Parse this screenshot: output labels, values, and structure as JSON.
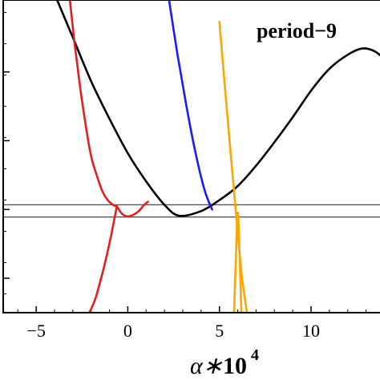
{
  "chart_data": {
    "type": "line",
    "title": "",
    "annotation": "period−9",
    "xlabel": {
      "base": "α∗",
      "exp_base": "10",
      "exp": "4"
    },
    "ylabel": "",
    "xlim": [
      -6.8,
      14.2
    ],
    "ylim": [
      0,
      1
    ],
    "xticks": [
      -5,
      0,
      5,
      10
    ],
    "xtick_labels": [
      "−5",
      "0",
      "5",
      "10"
    ],
    "yticks_minor": [
      0.06,
      0.16,
      0.26,
      0.36,
      0.46,
      0.56,
      0.66,
      0.76,
      0.86,
      0.96
    ],
    "yticks_major": [
      0.11,
      0.33,
      0.55,
      0.77
    ],
    "grid": false,
    "hlines": [
      {
        "name": "upper",
        "y": 0.345,
        "color": "#555555"
      },
      {
        "name": "lower",
        "y": 0.306,
        "color": "#555555"
      }
    ],
    "series": [
      {
        "color": "#000000",
        "x": [
          -4.0,
          -3.0,
          -2.0,
          -1.0,
          0.0,
          1.0,
          2.0,
          2.8,
          4.0,
          5.0,
          6.0,
          7.0,
          8.0,
          9.0,
          10.0,
          11.0,
          12.0,
          12.8,
          13.5,
          14.2
        ],
        "y": [
          1.02,
          0.88,
          0.74,
          0.62,
          0.51,
          0.42,
          0.345,
          0.31,
          0.325,
          0.36,
          0.405,
          0.47,
          0.545,
          0.625,
          0.71,
          0.78,
          0.825,
          0.845,
          0.835,
          0.8
        ]
      },
      {
        "color": "#e02020",
        "x": [
          -3.2,
          -2.9,
          -2.6,
          -2.3,
          -2.0,
          -1.7,
          -1.4,
          -1.1,
          -0.8,
          -0.6
        ],
        "y": [
          1.02,
          0.86,
          0.72,
          0.6,
          0.5,
          0.44,
          0.39,
          0.36,
          0.345,
          0.34
        ]
      },
      {
        "color": "#e02020",
        "x": [
          -0.6,
          -0.3,
          0.0,
          0.3,
          0.6,
          0.9,
          1.1
        ],
        "y": [
          0.34,
          0.315,
          0.308,
          0.313,
          0.325,
          0.345,
          0.355
        ]
      },
      {
        "color": "#e02020",
        "x": [
          -0.6,
          -0.9,
          -1.2,
          -1.5,
          -1.8,
          -2.1
        ],
        "y": [
          0.34,
          0.25,
          0.17,
          0.1,
          0.04,
          0.0
        ]
      },
      {
        "color": "#1a1aff",
        "x": [
          2.2,
          2.7,
          3.2,
          3.7,
          4.2,
          4.6
        ],
        "y": [
          1.02,
          0.83,
          0.66,
          0.51,
          0.39,
          0.33
        ]
      },
      {
        "color": "#ffa500",
        "x": [
          5.0,
          5.3,
          5.6,
          5.9,
          6.2,
          6.5
        ],
        "y": [
          0.93,
          0.72,
          0.52,
          0.32,
          0.13,
          0.0
        ]
      },
      {
        "color": "#ffa500",
        "x": [
          5.8,
          5.9,
          6.0,
          6.1,
          6.2
        ],
        "y": [
          0.0,
          0.18,
          0.32,
          0.18,
          0.0
        ]
      }
    ]
  }
}
